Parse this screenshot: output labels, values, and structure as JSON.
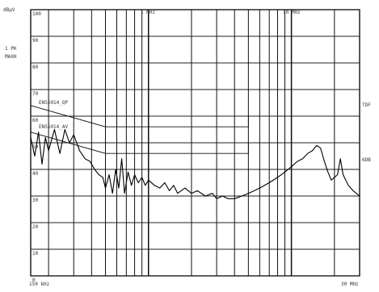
{
  "chart_data": {
    "type": "line",
    "x_scale": "log",
    "x_range": [
      150000,
      30000000
    ],
    "y_range": [
      0,
      100
    ],
    "y_ticks": [
      "100",
      "90",
      "80",
      "70",
      "60",
      "50",
      "40",
      "30",
      "20",
      "10",
      "0"
    ],
    "x_tick_labels": [
      {
        "x": 150000,
        "label": "150 kHz"
      },
      {
        "x": 1000000,
        "label": "1 MHz"
      },
      {
        "x": 10000000,
        "label": "10 MHz"
      },
      {
        "x": 30000000,
        "label": "30 MHz"
      }
    ],
    "left_labels": [
      "dBµV",
      "1 PK",
      "MAXH"
    ],
    "right_labels": [
      "TDF",
      "6DB"
    ],
    "limit_lines": [
      {
        "name": "EN55014_QP",
        "points": [
          [
            150000,
            64
          ],
          [
            500000,
            56
          ],
          [
            5000000,
            56
          ],
          [
            5000000,
            60
          ]
        ]
      },
      {
        "name": "EN55014_AV",
        "points": [
          [
            150000,
            54
          ],
          [
            500000,
            46
          ],
          [
            5000000,
            46
          ],
          [
            5000000,
            50
          ]
        ]
      }
    ],
    "grid": true,
    "series": [
      {
        "values": [
          [
            150000,
            52
          ],
          [
            160000,
            45
          ],
          [
            170000,
            54
          ],
          [
            180000,
            42
          ],
          [
            190000,
            52
          ],
          [
            200000,
            47
          ],
          [
            220000,
            55
          ],
          [
            240000,
            46
          ],
          [
            260000,
            55
          ],
          [
            280000,
            50
          ],
          [
            300000,
            53
          ],
          [
            330000,
            47
          ],
          [
            360000,
            44
          ],
          [
            390000,
            43
          ],
          [
            420000,
            40
          ],
          [
            450000,
            38
          ],
          [
            480000,
            37
          ],
          [
            500000,
            33
          ],
          [
            530000,
            38
          ],
          [
            560000,
            31
          ],
          [
            590000,
            40
          ],
          [
            620000,
            33
          ],
          [
            650000,
            44
          ],
          [
            680000,
            31
          ],
          [
            720000,
            39
          ],
          [
            760000,
            34
          ],
          [
            800000,
            38
          ],
          [
            850000,
            35
          ],
          [
            900000,
            37
          ],
          [
            950000,
            34
          ],
          [
            1000000,
            36
          ],
          [
            1100000,
            34
          ],
          [
            1200000,
            33
          ],
          [
            1300000,
            35
          ],
          [
            1400000,
            32
          ],
          [
            1500000,
            34
          ],
          [
            1600000,
            31
          ],
          [
            1800000,
            33
          ],
          [
            2000000,
            31
          ],
          [
            2200000,
            32
          ],
          [
            2500000,
            30
          ],
          [
            2800000,
            31
          ],
          [
            3000000,
            29
          ],
          [
            3300000,
            30
          ],
          [
            3600000,
            29
          ],
          [
            4000000,
            29
          ],
          [
            4500000,
            30
          ],
          [
            5000000,
            31
          ],
          [
            5500000,
            32
          ],
          [
            6000000,
            33
          ],
          [
            7000000,
            35
          ],
          [
            8000000,
            37
          ],
          [
            9000000,
            39
          ],
          [
            10000000,
            41
          ],
          [
            11000000,
            43
          ],
          [
            12000000,
            44
          ],
          [
            13000000,
            46
          ],
          [
            14000000,
            47
          ],
          [
            15000000,
            49
          ],
          [
            16000000,
            48
          ],
          [
            17000000,
            43
          ],
          [
            18000000,
            39
          ],
          [
            19000000,
            36
          ],
          [
            20000000,
            37
          ],
          [
            21000000,
            38
          ],
          [
            22000000,
            44
          ],
          [
            23000000,
            38
          ],
          [
            24000000,
            36
          ],
          [
            25000000,
            34
          ],
          [
            27000000,
            32
          ],
          [
            30000000,
            30
          ]
        ]
      }
    ]
  }
}
